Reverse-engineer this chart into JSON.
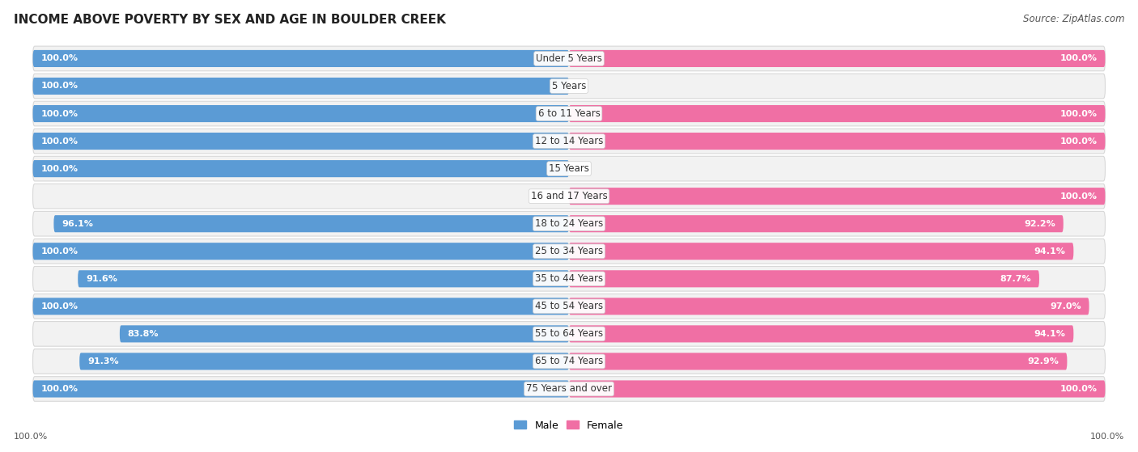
{
  "title": "INCOME ABOVE POVERTY BY SEX AND AGE IN BOULDER CREEK",
  "source": "Source: ZipAtlas.com",
  "categories": [
    "Under 5 Years",
    "5 Years",
    "6 to 11 Years",
    "12 to 14 Years",
    "15 Years",
    "16 and 17 Years",
    "18 to 24 Years",
    "25 to 34 Years",
    "35 to 44 Years",
    "45 to 54 Years",
    "55 to 64 Years",
    "65 to 74 Years",
    "75 Years and over"
  ],
  "male_values": [
    100.0,
    100.0,
    100.0,
    100.0,
    100.0,
    0.0,
    96.1,
    100.0,
    91.6,
    100.0,
    83.8,
    91.3,
    100.0
  ],
  "female_values": [
    100.0,
    0.0,
    100.0,
    100.0,
    0.0,
    100.0,
    92.2,
    94.1,
    87.7,
    97.0,
    94.1,
    92.9,
    100.0
  ],
  "male_color": "#5b9bd5",
  "female_color": "#f06fa4",
  "male_zero_color": "#c5ddf0",
  "female_zero_color": "#fad0e2",
  "male_label": "Male",
  "female_label": "Female",
  "row_bg_color": "#f2f2f2",
  "row_border_color": "#d8d8d8",
  "fig_bg_color": "#ffffff",
  "title_fontsize": 11,
  "cat_fontsize": 8.5,
  "value_fontsize": 8.0,
  "source_fontsize": 8.5,
  "legend_fontsize": 9,
  "footer_male": "100.0%",
  "footer_female": "100.0%",
  "footer_fontsize": 8.0
}
